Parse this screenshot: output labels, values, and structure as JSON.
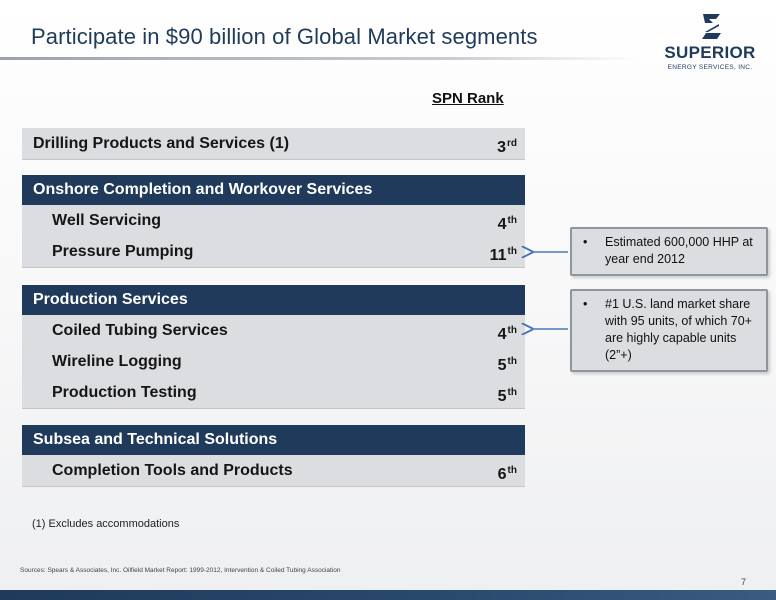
{
  "title": "Participate in $90 billion of Global Market segments",
  "logo": {
    "word": "SUPERIOR",
    "sub": "ENERGY SERVICES, INC."
  },
  "rank_header": "SPN Rank",
  "drilling": {
    "label": "Drilling Products and Services (1)",
    "rank": "3",
    "suffix": "rd"
  },
  "onshore": {
    "header": "Onshore Completion and Workover Services",
    "items": [
      {
        "label": "Well Servicing",
        "rank": "4",
        "suffix": "th"
      },
      {
        "label": "Pressure Pumping",
        "rank": "11",
        "suffix": "th"
      }
    ]
  },
  "production": {
    "header": "Production Services",
    "items": [
      {
        "label": "Coiled Tubing Services",
        "rank": "4",
        "suffix": "th"
      },
      {
        "label": "Wireline Logging",
        "rank": "5",
        "suffix": "th"
      },
      {
        "label": "Production Testing",
        "rank": "5",
        "suffix": "th"
      }
    ]
  },
  "subsea": {
    "header": "Subsea and Technical Solutions",
    "items": [
      {
        "label": "Completion Tools and Products",
        "rank": "6",
        "suffix": "th"
      }
    ]
  },
  "footnote": "(1) Excludes accommodations",
  "callouts": [
    {
      "bullet": "•",
      "text": "Estimated 600,000 HHP at year end 2012"
    },
    {
      "bullet": "•",
      "text": "#1 U.S. land market share with 95 units, of which 70+ are highly capable units (2”+)"
    }
  ],
  "sources": "Sources: Spears & Associates, Inc. Oilfield Market Report: 1999-2012, Intervention & Coiled Tubing Association",
  "page_number": "7",
  "colors": {
    "navy": "#1f3a5a",
    "panel": "#dcdde0",
    "connector": "#4a78b8"
  }
}
